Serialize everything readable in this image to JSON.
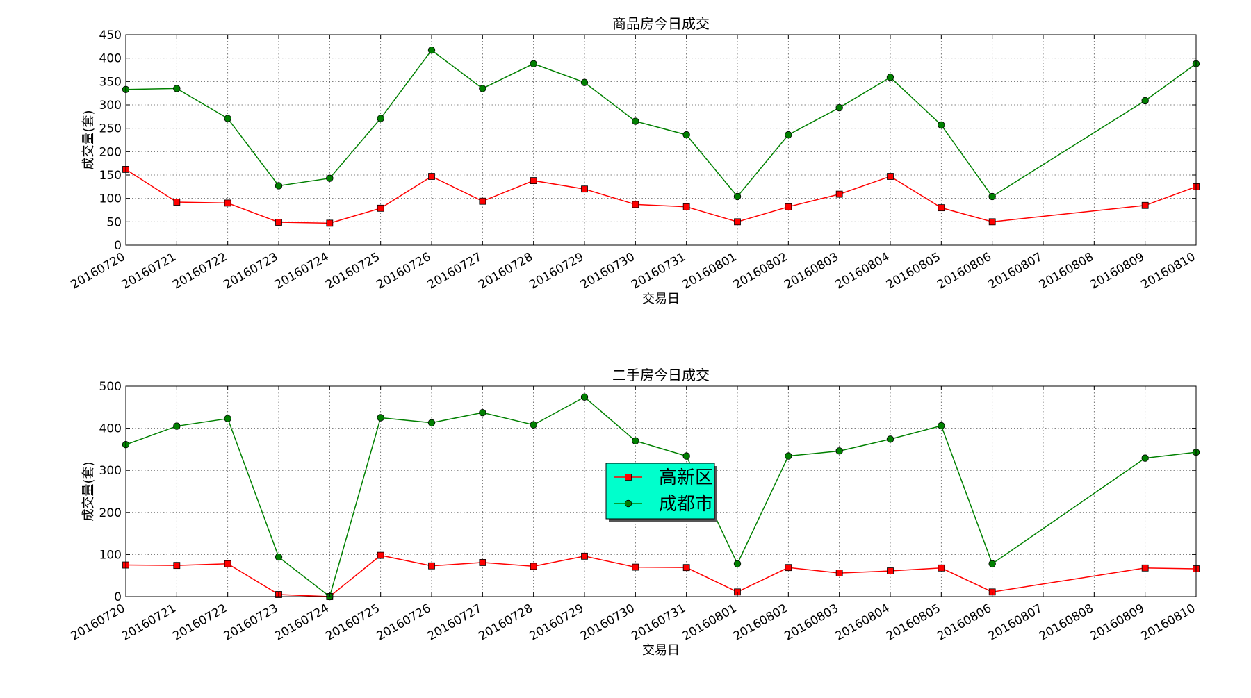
{
  "figure": {
    "background": "#ffffff"
  },
  "chart_data": [
    {
      "type": "line",
      "title": "商品房今日成交",
      "xlabel": "交易日",
      "ylabel": "成交量(套)",
      "categories": [
        "20160720",
        "20160721",
        "20160722",
        "20160723",
        "20160724",
        "20160725",
        "20160726",
        "20160727",
        "20160728",
        "20160729",
        "20160730",
        "20160731",
        "20160801",
        "20160802",
        "20160803",
        "20160804",
        "20160805",
        "20160806",
        "20160807",
        "20160808",
        "20160809",
        "20160810"
      ],
      "ylim": [
        0,
        450
      ],
      "yticks": [
        0,
        50,
        100,
        150,
        200,
        250,
        300,
        350,
        400,
        450
      ],
      "grid": true,
      "series": [
        {
          "name": "高新区",
          "color": "#ff0000",
          "marker": "square",
          "x": [
            "20160720",
            "20160721",
            "20160722",
            "20160723",
            "20160724",
            "20160725",
            "20160726",
            "20160727",
            "20160728",
            "20160729",
            "20160730",
            "20160731",
            "20160801",
            "20160802",
            "20160803",
            "20160804",
            "20160805",
            "20160806",
            "20160809",
            "20160810"
          ],
          "values": [
            162,
            92,
            90,
            49,
            47,
            79,
            147,
            94,
            138,
            120,
            87,
            82,
            50,
            82,
            109,
            147,
            80,
            50,
            85,
            125
          ]
        },
        {
          "name": "成都市",
          "color": "#008000",
          "marker": "circle",
          "x": [
            "20160720",
            "20160721",
            "20160722",
            "20160723",
            "20160724",
            "20160725",
            "20160726",
            "20160727",
            "20160728",
            "20160729",
            "20160730",
            "20160731",
            "20160801",
            "20160802",
            "20160803",
            "20160804",
            "20160805",
            "20160806",
            "20160809",
            "20160810"
          ],
          "values": [
            333,
            335,
            271,
            127,
            143,
            271,
            417,
            335,
            388,
            348,
            265,
            236,
            104,
            236,
            294,
            359,
            257,
            104,
            309,
            388
          ]
        }
      ]
    },
    {
      "type": "line",
      "title": "二手房今日成交",
      "xlabel": "交易日",
      "ylabel": "成交量(套)",
      "categories": [
        "20160720",
        "20160721",
        "20160722",
        "20160723",
        "20160724",
        "20160725",
        "20160726",
        "20160727",
        "20160728",
        "20160729",
        "20160730",
        "20160731",
        "20160801",
        "20160802",
        "20160803",
        "20160804",
        "20160805",
        "20160806",
        "20160807",
        "20160808",
        "20160809",
        "20160810"
      ],
      "ylim": [
        0,
        500
      ],
      "yticks": [
        0,
        100,
        200,
        300,
        400,
        500
      ],
      "grid": true,
      "legend": {
        "placement": "center",
        "background": "#00ffcc"
      },
      "series": [
        {
          "name": "高新区",
          "color": "#ff0000",
          "marker": "square",
          "x": [
            "20160720",
            "20160721",
            "20160722",
            "20160723",
            "20160724",
            "20160725",
            "20160726",
            "20160727",
            "20160728",
            "20160729",
            "20160730",
            "20160731",
            "20160801",
            "20160802",
            "20160803",
            "20160804",
            "20160805",
            "20160806",
            "20160809",
            "20160810"
          ],
          "values": [
            75,
            74,
            78,
            5,
            0,
            98,
            73,
            81,
            72,
            96,
            70,
            69,
            11,
            69,
            56,
            61,
            68,
            11,
            68,
            66
          ]
        },
        {
          "name": "成都市",
          "color": "#008000",
          "marker": "circle",
          "x": [
            "20160720",
            "20160721",
            "20160722",
            "20160723",
            "20160724",
            "20160725",
            "20160726",
            "20160727",
            "20160728",
            "20160729",
            "20160730",
            "20160731",
            "20160801",
            "20160802",
            "20160803",
            "20160804",
            "20160805",
            "20160806",
            "20160809",
            "20160810"
          ],
          "values": [
            361,
            405,
            423,
            94,
            0,
            425,
            413,
            437,
            408,
            474,
            370,
            334,
            78,
            334,
            346,
            374,
            406,
            78,
            329,
            343
          ]
        }
      ]
    }
  ]
}
